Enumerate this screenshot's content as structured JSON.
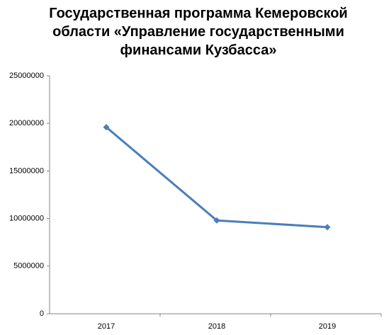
{
  "chart_data": {
    "type": "line",
    "title": "Государственная программа Кемеровской области «Управление государственными финансами Кузбасса»",
    "categories": [
      "2017",
      "2018",
      "2019"
    ],
    "series": [
      {
        "color": "#4a7ebb",
        "values": [
          19600000,
          9800000,
          9100000
        ]
      }
    ],
    "ylim": [
      0,
      25000000
    ],
    "yticks": [
      0,
      5000000,
      10000000,
      15000000,
      20000000,
      25000000
    ],
    "grid": false
  }
}
